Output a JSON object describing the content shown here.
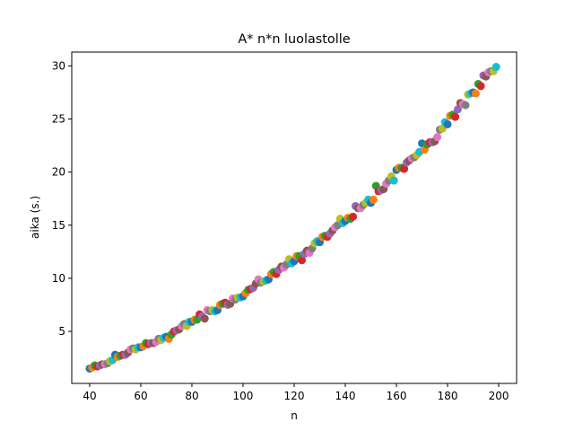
{
  "chart_data": {
    "type": "scatter",
    "title": "A* n*n luolastolle",
    "xlabel": "n",
    "ylabel": "aika (s.)",
    "xlim": [
      33,
      207
    ],
    "ylim": [
      0.1,
      31.3
    ],
    "xticks": [
      40,
      60,
      80,
      100,
      120,
      140,
      160,
      180,
      200
    ],
    "yticks": [
      5,
      10,
      15,
      20,
      25,
      30
    ],
    "grid": false,
    "legend": "none",
    "marker_colors": [
      "#1f77b4",
      "#ff7f0e",
      "#2ca02c",
      "#d62728",
      "#9467bd",
      "#8c564b",
      "#e377c2",
      "#7f7f7f",
      "#bcbd22",
      "#17becf"
    ],
    "points": [
      {
        "n": 40,
        "t": 1.5
      },
      {
        "n": 41,
        "t": 1.6
      },
      {
        "n": 42,
        "t": 1.8
      },
      {
        "n": 43,
        "t": 1.7
      },
      {
        "n": 44,
        "t": 1.8
      },
      {
        "n": 45,
        "t": 1.9
      },
      {
        "n": 46,
        "t": 1.9
      },
      {
        "n": 47,
        "t": 2.0
      },
      {
        "n": 48,
        "t": 2.2
      },
      {
        "n": 49,
        "t": 2.3
      },
      {
        "n": 50,
        "t": 2.8
      },
      {
        "n": 51,
        "t": 2.6
      },
      {
        "n": 52,
        "t": 2.7
      },
      {
        "n": 53,
        "t": 2.8
      },
      {
        "n": 54,
        "t": 2.8
      },
      {
        "n": 55,
        "t": 3.0
      },
      {
        "n": 56,
        "t": 3.3
      },
      {
        "n": 57,
        "t": 3.4
      },
      {
        "n": 58,
        "t": 3.3
      },
      {
        "n": 59,
        "t": 3.5
      },
      {
        "n": 60,
        "t": 3.5
      },
      {
        "n": 61,
        "t": 3.6
      },
      {
        "n": 62,
        "t": 3.9
      },
      {
        "n": 63,
        "t": 3.8
      },
      {
        "n": 64,
        "t": 3.9
      },
      {
        "n": 65,
        "t": 3.9
      },
      {
        "n": 66,
        "t": 4.0
      },
      {
        "n": 67,
        "t": 4.3
      },
      {
        "n": 68,
        "t": 4.2
      },
      {
        "n": 69,
        "t": 4.4
      },
      {
        "n": 70,
        "t": 4.5
      },
      {
        "n": 71,
        "t": 4.3
      },
      {
        "n": 72,
        "t": 4.7
      },
      {
        "n": 73,
        "t": 5.0
      },
      {
        "n": 74,
        "t": 5.1
      },
      {
        "n": 75,
        "t": 5.2
      },
      {
        "n": 76,
        "t": 5.5
      },
      {
        "n": 77,
        "t": 5.7
      },
      {
        "n": 78,
        "t": 5.5
      },
      {
        "n": 79,
        "t": 5.9
      },
      {
        "n": 80,
        "t": 5.9
      },
      {
        "n": 81,
        "t": 6.1
      },
      {
        "n": 82,
        "t": 6.1
      },
      {
        "n": 83,
        "t": 6.6
      },
      {
        "n": 84,
        "t": 6.4
      },
      {
        "n": 85,
        "t": 6.2
      },
      {
        "n": 86,
        "t": 7.0
      },
      {
        "n": 87,
        "t": 6.9
      },
      {
        "n": 88,
        "t": 7.0
      },
      {
        "n": 89,
        "t": 6.9
      },
      {
        "n": 90,
        "t": 7.0
      },
      {
        "n": 91,
        "t": 7.5
      },
      {
        "n": 92,
        "t": 7.6
      },
      {
        "n": 93,
        "t": 7.7
      },
      {
        "n": 94,
        "t": 7.5
      },
      {
        "n": 95,
        "t": 7.6
      },
      {
        "n": 96,
        "t": 8.1
      },
      {
        "n": 97,
        "t": 8.0
      },
      {
        "n": 98,
        "t": 8.2
      },
      {
        "n": 99,
        "t": 8.2
      },
      {
        "n": 100,
        "t": 8.3
      },
      {
        "n": 101,
        "t": 8.6
      },
      {
        "n": 102,
        "t": 8.9
      },
      {
        "n": 103,
        "t": 9.0
      },
      {
        "n": 104,
        "t": 9.1
      },
      {
        "n": 105,
        "t": 9.5
      },
      {
        "n": 106,
        "t": 9.9
      },
      {
        "n": 107,
        "t": 9.6
      },
      {
        "n": 108,
        "t": 9.7
      },
      {
        "n": 109,
        "t": 9.8
      },
      {
        "n": 110,
        "t": 9.9
      },
      {
        "n": 111,
        "t": 10.4
      },
      {
        "n": 112,
        "t": 10.6
      },
      {
        "n": 113,
        "t": 10.4
      },
      {
        "n": 114,
        "t": 10.8
      },
      {
        "n": 115,
        "t": 11.1
      },
      {
        "n": 116,
        "t": 11.0
      },
      {
        "n": 117,
        "t": 11.3
      },
      {
        "n": 118,
        "t": 11.8
      },
      {
        "n": 119,
        "t": 11.4
      },
      {
        "n": 120,
        "t": 11.6
      },
      {
        "n": 121,
        "t": 12.1
      },
      {
        "n": 122,
        "t": 12.1
      },
      {
        "n": 123,
        "t": 11.7
      },
      {
        "n": 124,
        "t": 12.3
      },
      {
        "n": 125,
        "t": 12.6
      },
      {
        "n": 126,
        "t": 12.4
      },
      {
        "n": 127,
        "t": 12.8
      },
      {
        "n": 128,
        "t": 13.3
      },
      {
        "n": 129,
        "t": 13.5
      },
      {
        "n": 130,
        "t": 13.4
      },
      {
        "n": 131,
        "t": 13.9
      },
      {
        "n": 132,
        "t": 14.0
      },
      {
        "n": 133,
        "t": 13.9
      },
      {
        "n": 134,
        "t": 14.2
      },
      {
        "n": 135,
        "t": 14.5
      },
      {
        "n": 136,
        "t": 14.8
      },
      {
        "n": 137,
        "t": 15.0
      },
      {
        "n": 138,
        "t": 15.6
      },
      {
        "n": 139,
        "t": 15.2
      },
      {
        "n": 140,
        "t": 15.4
      },
      {
        "n": 141,
        "t": 15.7
      },
      {
        "n": 142,
        "t": 15.6
      },
      {
        "n": 143,
        "t": 15.8
      },
      {
        "n": 144,
        "t": 16.8
      },
      {
        "n": 145,
        "t": 16.6
      },
      {
        "n": 146,
        "t": 16.6
      },
      {
        "n": 147,
        "t": 16.9
      },
      {
        "n": 148,
        "t": 17.1
      },
      {
        "n": 149,
        "t": 17.4
      },
      {
        "n": 150,
        "t": 17.1
      },
      {
        "n": 151,
        "t": 17.4
      },
      {
        "n": 152,
        "t": 18.7
      },
      {
        "n": 153,
        "t": 18.2
      },
      {
        "n": 154,
        "t": 18.3
      },
      {
        "n": 155,
        "t": 18.4
      },
      {
        "n": 156,
        "t": 18.9
      },
      {
        "n": 157,
        "t": 19.2
      },
      {
        "n": 158,
        "t": 19.6
      },
      {
        "n": 159,
        "t": 19.2
      },
      {
        "n": 160,
        "t": 20.2
      },
      {
        "n": 161,
        "t": 20.4
      },
      {
        "n": 162,
        "t": 20.4
      },
      {
        "n": 163,
        "t": 20.3
      },
      {
        "n": 164,
        "t": 20.9
      },
      {
        "n": 165,
        "t": 21.1
      },
      {
        "n": 166,
        "t": 21.3
      },
      {
        "n": 167,
        "t": 21.4
      },
      {
        "n": 168,
        "t": 21.6
      },
      {
        "n": 169,
        "t": 21.9
      },
      {
        "n": 170,
        "t": 22.7
      },
      {
        "n": 171,
        "t": 22.1
      },
      {
        "n": 172,
        "t": 22.6
      },
      {
        "n": 173,
        "t": 22.8
      },
      {
        "n": 174,
        "t": 22.8
      },
      {
        "n": 175,
        "t": 22.9
      },
      {
        "n": 176,
        "t": 23.3
      },
      {
        "n": 177,
        "t": 24.0
      },
      {
        "n": 178,
        "t": 24.1
      },
      {
        "n": 179,
        "t": 24.7
      },
      {
        "n": 180,
        "t": 24.5
      },
      {
        "n": 181,
        "t": 25.3
      },
      {
        "n": 182,
        "t": 25.4
      },
      {
        "n": 183,
        "t": 25.2
      },
      {
        "n": 184,
        "t": 25.9
      },
      {
        "n": 185,
        "t": 26.5
      },
      {
        "n": 186,
        "t": 26.4
      },
      {
        "n": 187,
        "t": 26.3
      },
      {
        "n": 188,
        "t": 27.3
      },
      {
        "n": 189,
        "t": 27.4
      },
      {
        "n": 190,
        "t": 27.5
      },
      {
        "n": 191,
        "t": 27.4
      },
      {
        "n": 192,
        "t": 28.3
      },
      {
        "n": 193,
        "t": 28.1
      },
      {
        "n": 194,
        "t": 29.1
      },
      {
        "n": 195,
        "t": 29.0
      },
      {
        "n": 196,
        "t": 29.4
      },
      {
        "n": 197,
        "t": 29.5
      },
      {
        "n": 198,
        "t": 29.5
      },
      {
        "n": 199,
        "t": 29.9
      }
    ]
  }
}
